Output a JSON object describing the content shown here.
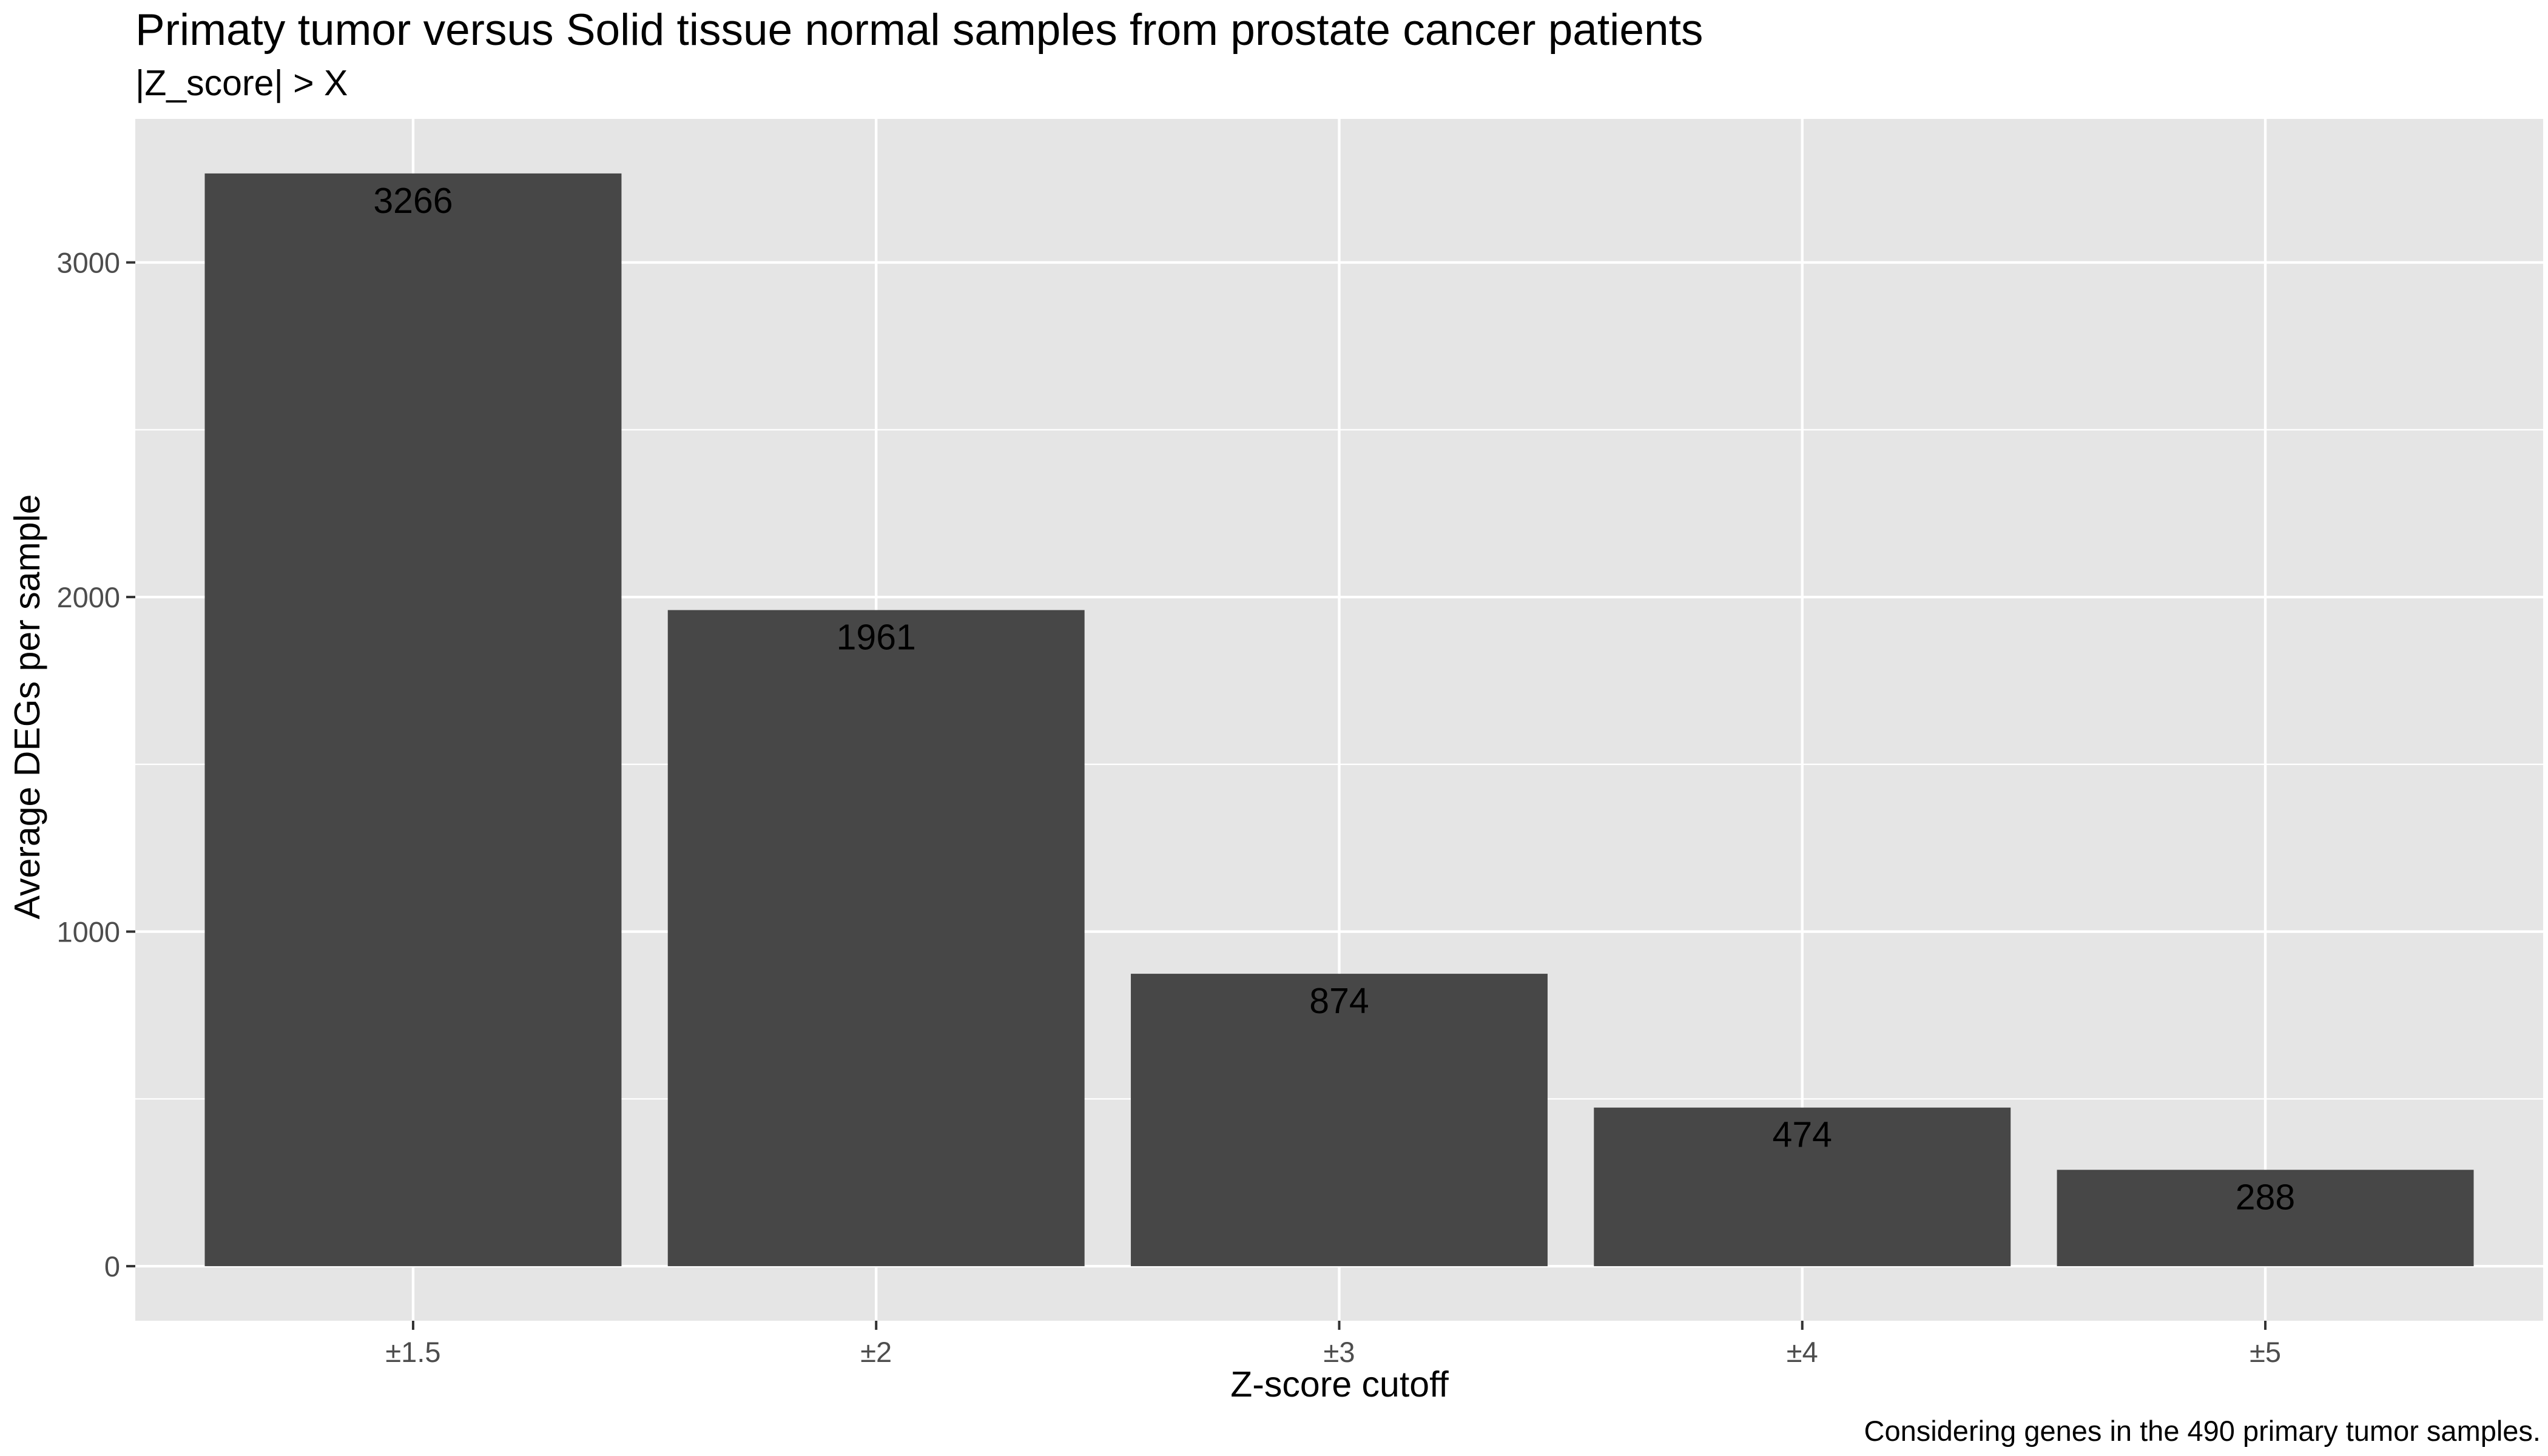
{
  "chart_data": {
    "type": "bar",
    "title": "Primaty tumor versus Solid tissue normal samples from prostate cancer patients",
    "subtitle": "|Z_score| > X",
    "xlabel": "Z-score cutoff",
    "ylabel": "Average DEGs per sample",
    "caption": "Considering genes in the 490 primary tumor samples.",
    "categories": [
      "±1.5",
      "±2",
      "±3",
      "±4",
      "±5"
    ],
    "values": [
      3266,
      1961,
      874,
      474,
      288
    ],
    "data_labels": [
      "3266",
      "1961",
      "874",
      "474",
      "288"
    ],
    "ylim": [
      -163,
      3429
    ],
    "yticks": [
      0,
      1000,
      2000,
      3000
    ],
    "ytick_labels": [
      "0",
      "1000",
      "2000",
      "3000"
    ],
    "grid": true,
    "legend": "none",
    "colors": {
      "panel_background": "#e5e5e5",
      "grid_line": "#ffffff",
      "bar_fill": "#474747",
      "tick_mark": "#333333"
    }
  }
}
